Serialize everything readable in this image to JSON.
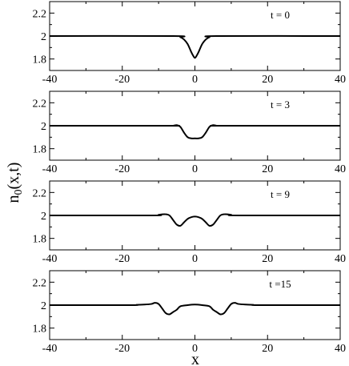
{
  "figure": {
    "ylabel_main": "n",
    "ylabel_sub": "0",
    "ylabel_rest": "(x,t)",
    "xlabel": "x"
  },
  "chart_data": [
    {
      "type": "line",
      "annotation": "t = 0",
      "xlim": [
        -40,
        40
      ],
      "ylim": [
        1.7,
        2.3
      ],
      "x_ticks": [
        "-40",
        "-20",
        "0",
        "20",
        "40"
      ],
      "y_ticks": [
        "1.8",
        "2",
        "2.2"
      ],
      "grid": false,
      "series": [
        {
          "x": [
            -40,
            -6,
            -4,
            -3,
            -2,
            -1,
            -0.5,
            0,
            0.5,
            1,
            2,
            3,
            4,
            6,
            40
          ],
          "y": [
            2,
            2,
            1.99,
            1.97,
            1.93,
            1.86,
            1.83,
            1.81,
            1.83,
            1.86,
            1.93,
            1.97,
            1.99,
            2,
            2
          ]
        }
      ]
    },
    {
      "type": "line",
      "annotation": "t = 3",
      "xlim": [
        -40,
        40
      ],
      "ylim": [
        1.7,
        2.3
      ],
      "x_ticks": [
        "-40",
        "-20",
        "0",
        "20",
        "40"
      ],
      "y_ticks": [
        "1.8",
        "2",
        "2.2"
      ],
      "grid": false,
      "series": [
        {
          "x": [
            -40,
            -7,
            -6,
            -5,
            -4,
            -3,
            -2,
            -1,
            0,
            1,
            2,
            3,
            4,
            5,
            6,
            7,
            40
          ],
          "y": [
            2,
            2,
            2,
            2.005,
            1.99,
            1.94,
            1.9,
            1.89,
            1.89,
            1.89,
            1.9,
            1.94,
            1.99,
            2.005,
            2,
            2,
            2
          ]
        }
      ]
    },
    {
      "type": "line",
      "annotation": "t = 9",
      "xlim": [
        -40,
        40
      ],
      "ylim": [
        1.7,
        2.3
      ],
      "x_ticks": [
        "-40",
        "-20",
        "0",
        "20",
        "40"
      ],
      "y_ticks": [
        "1.8",
        "2",
        "2.2"
      ],
      "grid": false,
      "series": [
        {
          "x": [
            -40,
            -12,
            -10,
            -9,
            -8,
            -7,
            -6,
            -5,
            -4,
            -3,
            -2,
            -1,
            0,
            1,
            2,
            3,
            4,
            5,
            6,
            7,
            8,
            9,
            10,
            12,
            40
          ],
          "y": [
            2,
            2,
            2.005,
            2.01,
            2.01,
            2,
            1.96,
            1.92,
            1.91,
            1.94,
            1.97,
            1.985,
            1.99,
            1.985,
            1.97,
            1.94,
            1.91,
            1.92,
            1.96,
            2,
            2.01,
            2.01,
            2.005,
            2,
            2
          ]
        }
      ]
    },
    {
      "type": "line",
      "annotation": "t =15",
      "xlim": [
        -40,
        40
      ],
      "ylim": [
        1.7,
        2.3
      ],
      "x_ticks": [
        "-40",
        "-20",
        "0",
        "20",
        "40"
      ],
      "y_ticks": [
        "1.8",
        "2",
        "2.2"
      ],
      "grid": false,
      "series": [
        {
          "x": [
            -40,
            -18,
            -16,
            -14,
            -12,
            -11,
            -10,
            -9,
            -8,
            -7,
            -6,
            -5,
            -4,
            -2,
            0,
            2,
            4,
            5,
            6,
            7,
            8,
            9,
            10,
            11,
            12,
            14,
            16,
            18,
            40
          ],
          "y": [
            2,
            2,
            2.003,
            2.005,
            2.01,
            2.02,
            2.01,
            1.97,
            1.93,
            1.92,
            1.94,
            1.96,
            1.99,
            2,
            2.005,
            2,
            1.99,
            1.96,
            1.94,
            1.92,
            1.93,
            1.97,
            2.01,
            2.02,
            2.01,
            2.005,
            2.003,
            2,
            2
          ]
        }
      ]
    }
  ]
}
